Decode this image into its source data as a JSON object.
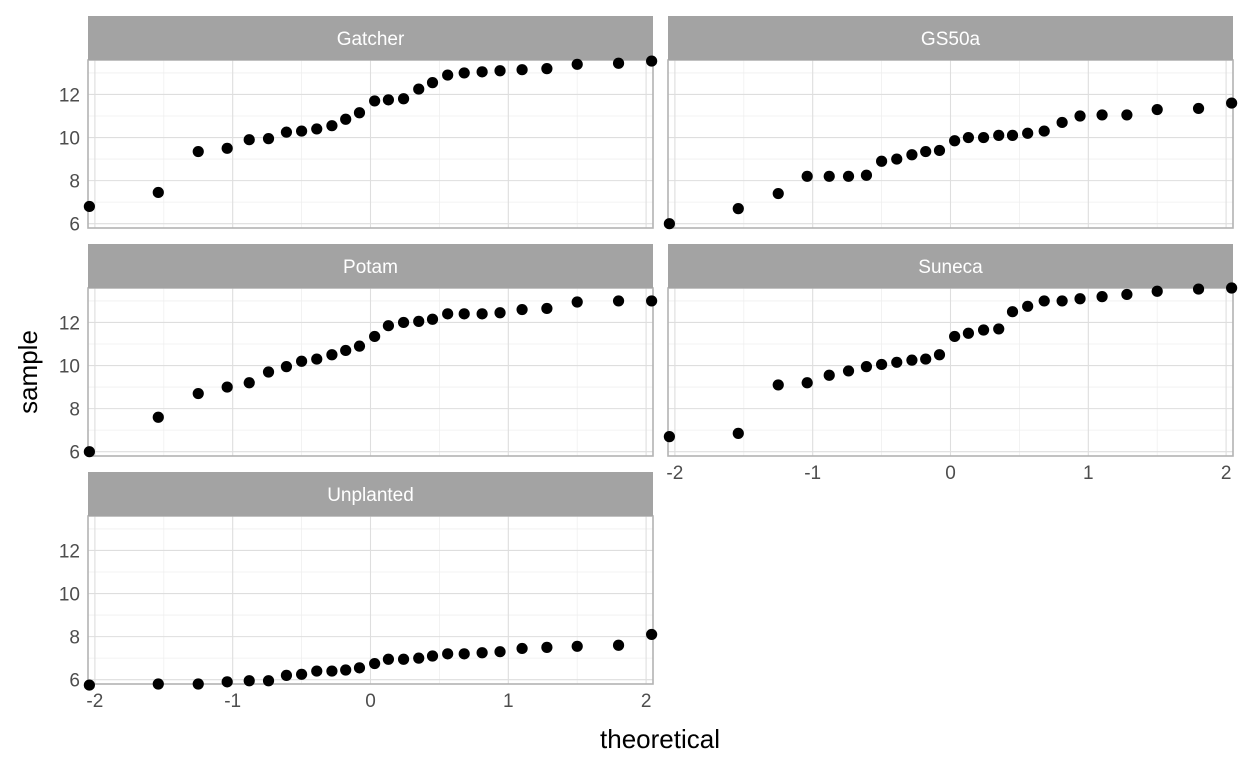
{
  "chart_data": {
    "type": "scatter",
    "facet_layout": "wrap",
    "xlabel": "theoretical",
    "ylabel": "sample",
    "xlim": [
      -2.05,
      2.05
    ],
    "ylim": [
      5.8,
      13.6
    ],
    "x_ticks": [
      -2,
      -1,
      0,
      1,
      2
    ],
    "x_tick_labels": [
      "-2",
      "-1",
      "0",
      "1",
      "2"
    ],
    "y_ticks": [
      6,
      8,
      10,
      12
    ],
    "y_tick_labels": [
      "6",
      "8",
      "10",
      "12"
    ],
    "grid": true,
    "colors": {
      "point": "#000000",
      "strip": "#a3a3a3",
      "strip_text": "#ffffff",
      "grid_major": "#dedede",
      "grid_minor": "#efefef",
      "panel_border": "#b3b3b3",
      "axis_text": "#4d4d4d",
      "axis_title": "#000000"
    },
    "panels": [
      {
        "name": "Gatcher",
        "x": [
          -2.04,
          -1.54,
          -1.25,
          -1.04,
          -0.88,
          -0.74,
          -0.61,
          -0.5,
          -0.39,
          -0.28,
          -0.18,
          -0.08,
          0.03,
          0.13,
          0.24,
          0.35,
          0.45,
          0.56,
          0.68,
          0.81,
          0.94,
          1.1,
          1.28,
          1.5,
          1.8,
          2.04
        ],
        "y": [
          6.8,
          7.45,
          9.35,
          9.5,
          9.9,
          9.95,
          10.25,
          10.3,
          10.4,
          10.55,
          10.85,
          11.15,
          11.7,
          11.75,
          11.8,
          12.25,
          12.55,
          12.9,
          13.0,
          13.05,
          13.1,
          13.15,
          13.2,
          13.4,
          13.45,
          13.55
        ]
      },
      {
        "name": "GS50a",
        "x": [
          -2.04,
          -1.54,
          -1.25,
          -1.04,
          -0.88,
          -0.74,
          -0.61,
          -0.5,
          -0.39,
          -0.28,
          -0.18,
          -0.08,
          0.03,
          0.13,
          0.24,
          0.35,
          0.45,
          0.56,
          0.68,
          0.81,
          0.94,
          1.1,
          1.28,
          1.5,
          1.8,
          2.04
        ],
        "y": [
          6.0,
          6.7,
          7.4,
          8.2,
          8.2,
          8.2,
          8.25,
          8.9,
          9.0,
          9.2,
          9.35,
          9.4,
          9.85,
          10.0,
          10.0,
          10.1,
          10.1,
          10.2,
          10.3,
          10.7,
          11.0,
          11.05,
          11.05,
          11.3,
          11.35,
          11.6
        ]
      },
      {
        "name": "Potam",
        "x": [
          -2.04,
          -1.54,
          -1.25,
          -1.04,
          -0.88,
          -0.74,
          -0.61,
          -0.5,
          -0.39,
          -0.28,
          -0.18,
          -0.08,
          0.03,
          0.13,
          0.24,
          0.35,
          0.45,
          0.56,
          0.68,
          0.81,
          0.94,
          1.1,
          1.28,
          1.5,
          1.8,
          2.04
        ],
        "y": [
          6.0,
          7.6,
          8.7,
          9.0,
          9.2,
          9.7,
          9.95,
          10.2,
          10.3,
          10.5,
          10.7,
          10.9,
          11.35,
          11.85,
          12.0,
          12.05,
          12.15,
          12.4,
          12.4,
          12.4,
          12.45,
          12.6,
          12.65,
          12.95,
          13.0,
          13.0
        ]
      },
      {
        "name": "Suneca",
        "x": [
          -2.04,
          -1.54,
          -1.25,
          -1.04,
          -0.88,
          -0.74,
          -0.61,
          -0.5,
          -0.39,
          -0.28,
          -0.18,
          -0.08,
          0.03,
          0.13,
          0.24,
          0.35,
          0.45,
          0.56,
          0.68,
          0.81,
          0.94,
          1.1,
          1.28,
          1.5,
          1.8,
          2.04
        ],
        "y": [
          6.7,
          6.85,
          9.1,
          9.2,
          9.55,
          9.75,
          9.95,
          10.05,
          10.15,
          10.25,
          10.3,
          10.5,
          11.35,
          11.5,
          11.65,
          11.7,
          12.5,
          12.75,
          13.0,
          13.0,
          13.1,
          13.2,
          13.3,
          13.45,
          13.55,
          13.6
        ]
      },
      {
        "name": "Unplanted",
        "x": [
          -2.04,
          -1.54,
          -1.25,
          -1.04,
          -0.88,
          -0.74,
          -0.61,
          -0.5,
          -0.39,
          -0.28,
          -0.18,
          -0.08,
          0.03,
          0.13,
          0.24,
          0.35,
          0.45,
          0.56,
          0.68,
          0.81,
          0.94,
          1.1,
          1.28,
          1.5,
          1.8,
          2.04
        ],
        "y": [
          5.75,
          5.8,
          5.8,
          5.9,
          5.95,
          5.95,
          6.2,
          6.25,
          6.4,
          6.4,
          6.45,
          6.55,
          6.75,
          6.95,
          6.95,
          7.0,
          7.1,
          7.2,
          7.2,
          7.25,
          7.3,
          7.45,
          7.5,
          7.55,
          7.6,
          8.1
        ]
      }
    ]
  }
}
